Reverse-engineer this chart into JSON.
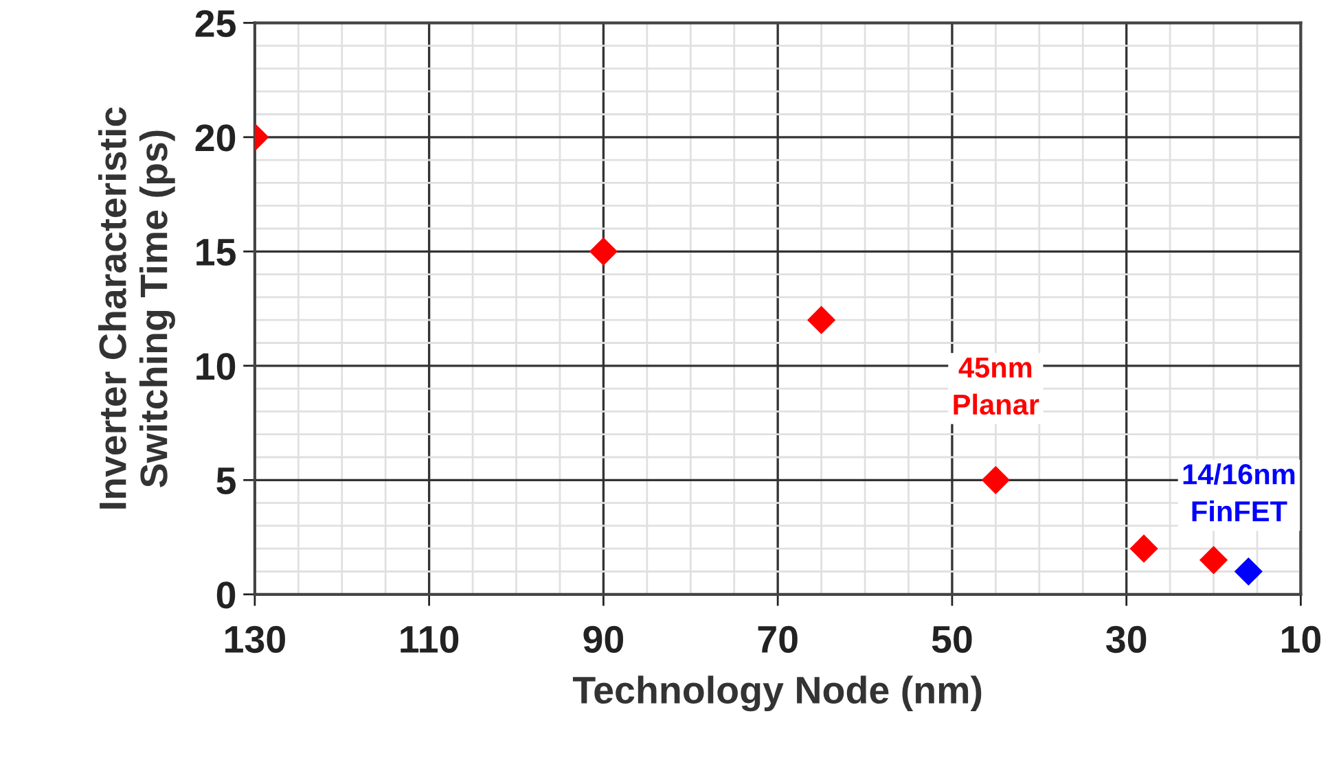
{
  "chart_data": {
    "type": "scatter",
    "xlabel": "Technology Node (nm)",
    "ylabel": "Inverter Characteristic\nSwitching Time (ps)",
    "series": [
      {
        "color": "#ff0000",
        "x": [
          130,
          90,
          65,
          45,
          28,
          20
        ],
        "values": [
          20,
          15,
          12,
          5,
          2,
          1.5
        ]
      },
      {
        "color": "#0000ff",
        "x": [
          16
        ],
        "values": [
          1
        ]
      }
    ],
    "marker": "diamond",
    "grid": true,
    "xlim": [
      130,
      10
    ],
    "xticks": [
      130,
      110,
      90,
      70,
      50,
      30,
      10
    ],
    "ylim": [
      0,
      25
    ],
    "yticks": [
      0,
      5,
      10,
      15,
      20,
      25
    ],
    "annotations": [
      {
        "text": "45nm\nPlanar",
        "x": 45,
        "y": 5
      },
      {
        "text": "14/16nm\nFinFET",
        "x": 16,
        "y": 1
      }
    ]
  }
}
